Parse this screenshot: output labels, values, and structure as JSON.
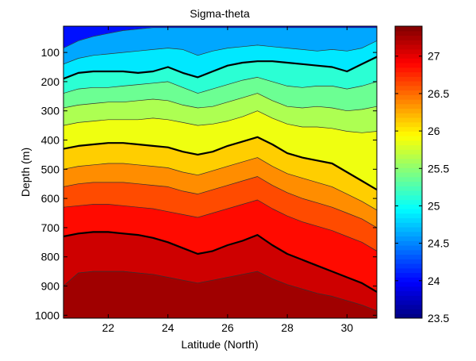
{
  "chart_data": {
    "type": "heatmap",
    "title": "Sigma-theta",
    "xlabel": "Latitude (North)",
    "ylabel": "Depth (m)",
    "xlim": [
      20.5,
      31
    ],
    "ylim": [
      1010,
      10
    ],
    "x_ticks": [
      "22",
      "24",
      "26",
      "28",
      "30"
    ],
    "x_tick_values": [
      22,
      24,
      26,
      28,
      30
    ],
    "y_ticks": [
      "100",
      "200",
      "300",
      "400",
      "500",
      "600",
      "700",
      "800",
      "900",
      "1000"
    ],
    "y_tick_values": [
      100,
      200,
      300,
      400,
      500,
      600,
      700,
      800,
      900,
      1000
    ],
    "colorbar": {
      "range": [
        23.5,
        27.4
      ],
      "ticks": [
        "23.5",
        "24",
        "24.5",
        "25",
        "25.5",
        "26",
        "26.5",
        "27"
      ],
      "tick_values": [
        23.5,
        24,
        24.5,
        25,
        25.5,
        26,
        26.5,
        27
      ],
      "colormap": "jet"
    },
    "latitudes": [
      20.5,
      21,
      21.5,
      22,
      22.5,
      23,
      23.5,
      24,
      24.5,
      25,
      25.5,
      26,
      26.5,
      27,
      27.5,
      28,
      28.5,
      29,
      29.5,
      30,
      30.5,
      31
    ],
    "isopycnals": [
      {
        "sigma": 24.5,
        "emphasis": false,
        "depths": [
          85,
          60,
          45,
          35,
          25,
          20,
          15,
          15,
          15,
          15,
          15,
          15,
          15,
          15,
          15,
          15,
          15,
          15,
          15,
          15,
          15,
          15
        ]
      },
      {
        "sigma": 24.75,
        "emphasis": false,
        "depths": [
          140,
          120,
          110,
          105,
          100,
          95,
          90,
          85,
          90,
          110,
          95,
          85,
          80,
          75,
          80,
          85,
          90,
          95,
          90,
          95,
          85,
          60
        ]
      },
      {
        "sigma": 25.0,
        "emphasis": true,
        "depths": [
          190,
          170,
          165,
          165,
          165,
          170,
          165,
          150,
          170,
          185,
          165,
          145,
          135,
          130,
          130,
          135,
          140,
          145,
          150,
          165,
          140,
          115
        ]
      },
      {
        "sigma": 25.25,
        "emphasis": false,
        "depths": [
          240,
          225,
          220,
          220,
          215,
          210,
          205,
          200,
          220,
          240,
          225,
          210,
          195,
          185,
          200,
          215,
          220,
          215,
          215,
          225,
          215,
          200
        ]
      },
      {
        "sigma": 25.5,
        "emphasis": false,
        "depths": [
          290,
          280,
          275,
          270,
          270,
          265,
          260,
          265,
          280,
          290,
          285,
          270,
          255,
          240,
          265,
          285,
          290,
          285,
          290,
          300,
          295,
          285
        ]
      },
      {
        "sigma": 25.75,
        "emphasis": false,
        "depths": [
          350,
          340,
          335,
          330,
          330,
          330,
          325,
          330,
          340,
          350,
          345,
          335,
          320,
          300,
          325,
          345,
          355,
          355,
          360,
          370,
          375,
          370
        ]
      },
      {
        "sigma": 26.0,
        "emphasis": true,
        "depths": [
          430,
          420,
          415,
          410,
          410,
          415,
          420,
          425,
          440,
          450,
          440,
          420,
          405,
          390,
          415,
          445,
          460,
          470,
          480,
          510,
          540,
          570
        ]
      },
      {
        "sigma": 26.25,
        "emphasis": false,
        "depths": [
          500,
          490,
          485,
          480,
          480,
          485,
          490,
          495,
          510,
          520,
          505,
          490,
          475,
          460,
          490,
          515,
          530,
          545,
          560,
          585,
          610,
          640
        ]
      },
      {
        "sigma": 26.5,
        "emphasis": false,
        "depths": [
          560,
          550,
          545,
          545,
          545,
          550,
          555,
          560,
          575,
          585,
          570,
          555,
          540,
          525,
          555,
          580,
          600,
          615,
          630,
          650,
          670,
          700
        ]
      },
      {
        "sigma": 26.75,
        "emphasis": false,
        "depths": [
          630,
          625,
          620,
          620,
          625,
          630,
          635,
          645,
          655,
          665,
          650,
          635,
          620,
          605,
          635,
          660,
          680,
          695,
          710,
          730,
          750,
          780
        ]
      },
      {
        "sigma": 27.0,
        "emphasis": true,
        "depths": [
          730,
          720,
          715,
          715,
          720,
          725,
          735,
          750,
          770,
          790,
          780,
          760,
          745,
          725,
          760,
          790,
          810,
          830,
          850,
          870,
          890,
          920
        ]
      },
      {
        "sigma": 27.2,
        "emphasis": false,
        "depths": [
          900,
          855,
          850,
          850,
          850,
          855,
          860,
          870,
          880,
          890,
          880,
          870,
          860,
          850,
          875,
          895,
          910,
          925,
          935,
          950,
          965,
          985
        ]
      }
    ]
  }
}
